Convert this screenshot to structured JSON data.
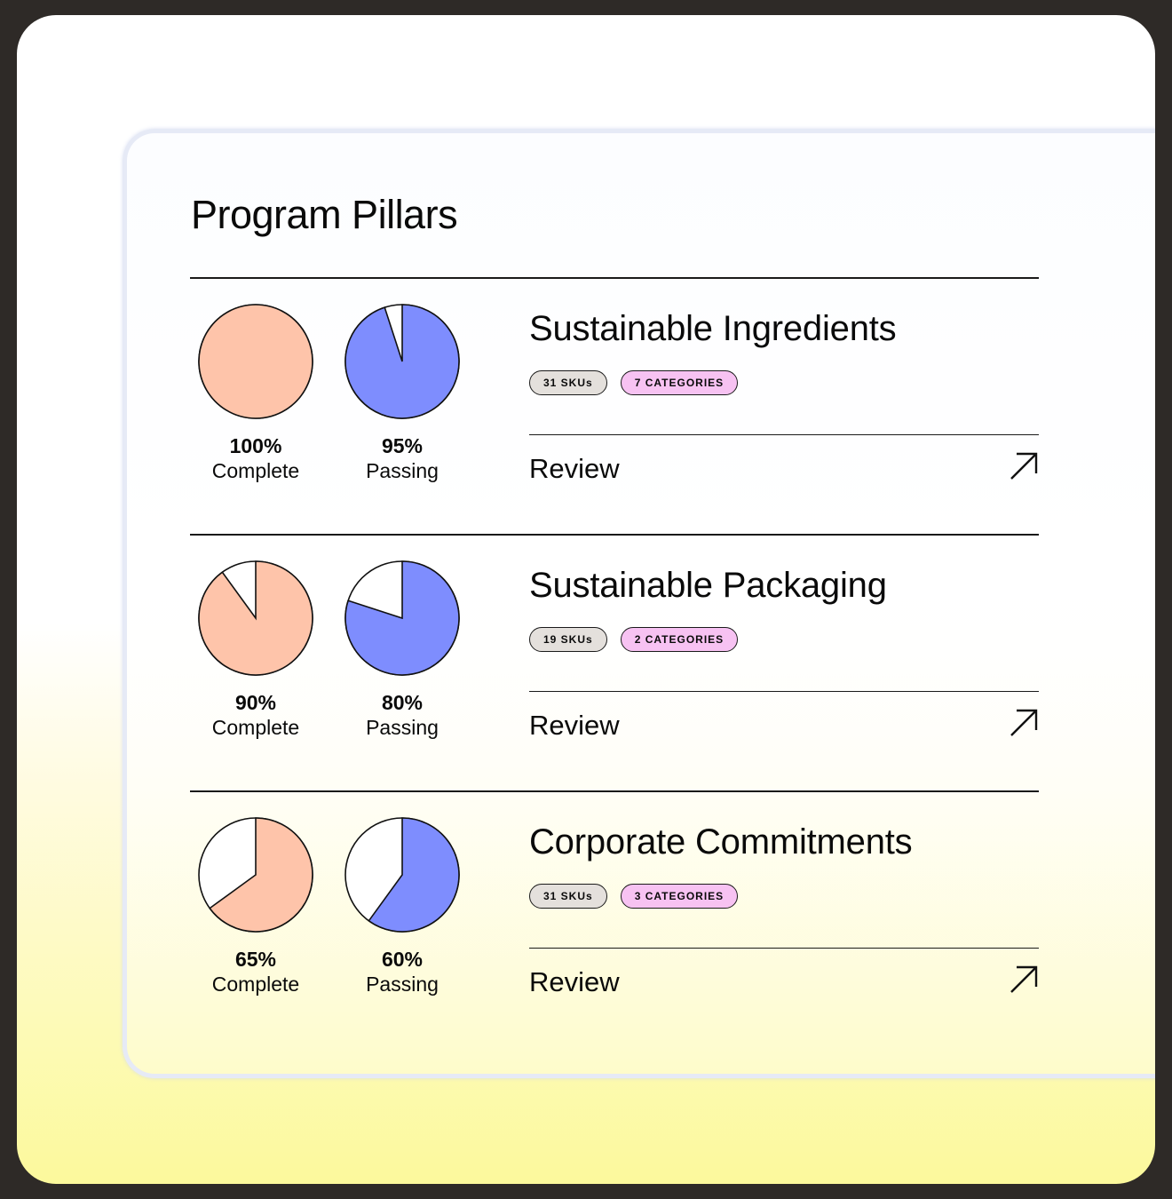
{
  "panel": {
    "title": "Program Pillars"
  },
  "colors": {
    "complete_fill": "#fec4aa",
    "passing_fill": "#7e8dfe",
    "sku_badge": "#e4e0dc",
    "category_badge": "#f7c2f2"
  },
  "pillars": [
    {
      "title": "Sustainable Ingredients",
      "skus": "31 SKUs",
      "categories": "7 CATEGORIES",
      "complete": {
        "value": "100%",
        "label": "Complete",
        "fraction": 1.0
      },
      "passing": {
        "value": "95%",
        "label": "Passing",
        "fraction": 0.95
      },
      "review_label": "Review",
      "review_icon": "arrow-up-right-icon"
    },
    {
      "title": "Sustainable Packaging",
      "skus": "19 SKUs",
      "categories": "2 CATEGORIES",
      "complete": {
        "value": "90%",
        "label": "Complete",
        "fraction": 0.9
      },
      "passing": {
        "value": "80%",
        "label": "Passing",
        "fraction": 0.8
      },
      "review_label": "Review",
      "review_icon": "arrow-up-right-icon"
    },
    {
      "title": "Corporate Commitments",
      "skus": "31 SKUs",
      "categories": "3 CATEGORIES",
      "complete": {
        "value": "65%",
        "label": "Complete",
        "fraction": 0.65
      },
      "passing": {
        "value": "60%",
        "label": "Passing",
        "fraction": 0.6
      },
      "review_label": "Review",
      "review_icon": "arrow-up-right-icon"
    }
  ]
}
